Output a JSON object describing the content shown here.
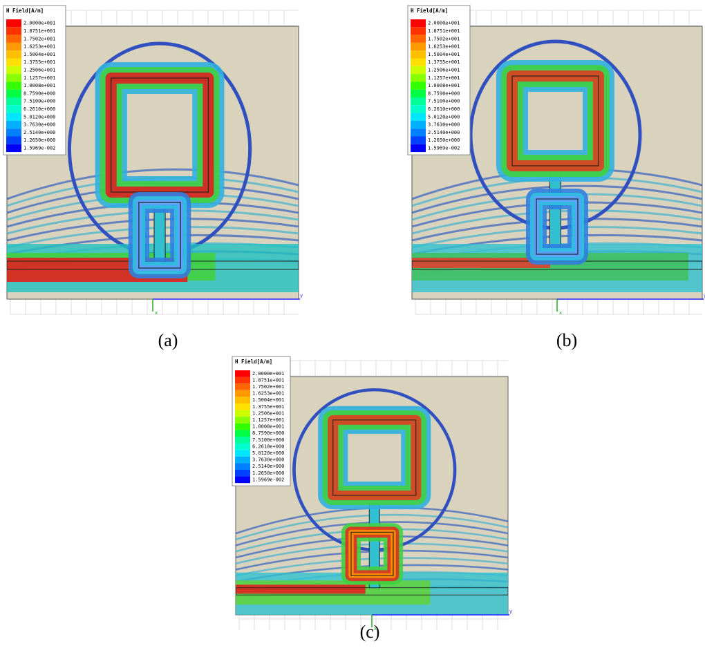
{
  "panels": [
    {
      "caption": "(a)",
      "legend": {
        "title": "H Field[A/m]",
        "labels": [
          "2.0000e+001",
          "1.8751e+001",
          "1.7502e+001",
          "1.6253e+001",
          "1.5004e+001",
          "1.3755e+001",
          "1.2506e+001",
          "1.1257e+001",
          "1.0008e+001",
          "8.7590e+000",
          "7.5100e+000",
          "6.2610e+000",
          "5.0120e+000",
          "3.7630e+000",
          "2.5140e+000",
          "1.2650e+000",
          "1.5969e-002"
        ]
      },
      "axis_labels": {
        "y": "y",
        "x": "x"
      }
    },
    {
      "caption": "(b)",
      "legend": {
        "title": "H Field[A/m]",
        "labels": [
          "2.0000e+001",
          "1.8751e+001",
          "1.7502e+001",
          "1.6253e+001",
          "1.5004e+001",
          "1.3755e+001",
          "1.2506e+001",
          "1.1257e+001",
          "1.0008e+001",
          "8.7590e+000",
          "7.5100e+000",
          "6.2610e+000",
          "5.0120e+000",
          "3.7630e+000",
          "2.5140e+000",
          "1.2650e+000",
          "1.5969e-002"
        ]
      },
      "axis_labels": {
        "y": "y",
        "x": "x"
      }
    },
    {
      "caption": "(c)",
      "legend": {
        "title": "H Field[A/m]",
        "labels": [
          "2.0000e+001",
          "1.8751e+001",
          "1.7502e+001",
          "1.6253e+001",
          "1.5004e+001",
          "1.3755e+001",
          "1.2506e+001",
          "1.1257e+001",
          "1.0008e+001",
          "8.7590e+000",
          "7.5100e+000",
          "6.2610e+000",
          "5.0120e+000",
          "3.7630e+000",
          "2.5140e+000",
          "1.2650e+000",
          "1.5969e-002"
        ]
      },
      "axis_labels": {
        "y": "y",
        "x": "x"
      }
    }
  ]
}
